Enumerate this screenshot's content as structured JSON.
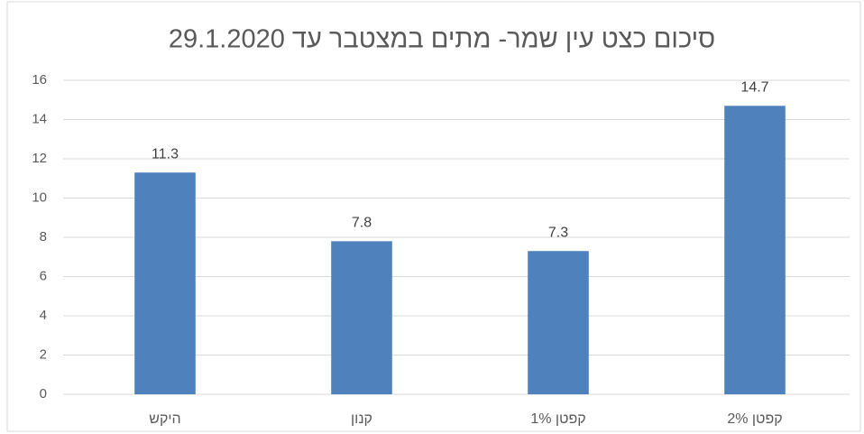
{
  "chart_data": {
    "type": "bar",
    "title": "סיכום כצט עין שמר- מתים במצטבר עד 29.1.2020",
    "categories": [
      "היקש",
      "קנון",
      "קפטן 1%",
      "קפטן 2%"
    ],
    "values": [
      11.3,
      7.8,
      7.3,
      14.7
    ],
    "color": "#4f81bd",
    "ylim": [
      0,
      16
    ],
    "yticks": [
      0,
      2,
      4,
      6,
      8,
      10,
      12,
      14,
      16
    ],
    "grid": true
  }
}
